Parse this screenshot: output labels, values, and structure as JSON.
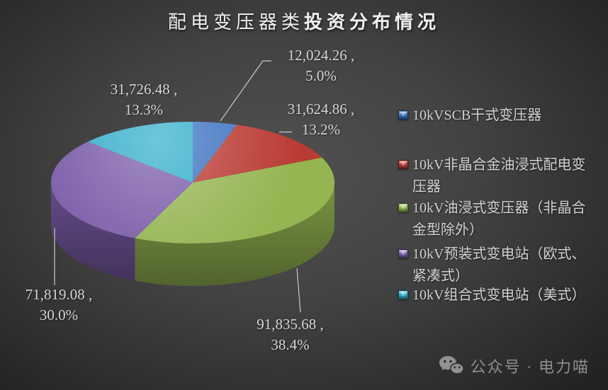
{
  "title": {
    "part1": "配电变压器类",
    "part2": "投资分布情况"
  },
  "chart_data": {
    "type": "pie",
    "is_3d": true,
    "start_angle_deg": 0,
    "direction": "clockwise",
    "legend_position": "right",
    "title": "配电变压器类投资分布情况",
    "slices": [
      {
        "name": "10kVSCB干式变压器",
        "value": 12024.26,
        "pct": 5.0,
        "value_label": "12,024.26 ,",
        "pct_label": "5.0%",
        "color": "#3d72c0"
      },
      {
        "name": "10kV非晶合金油浸式配电变压器",
        "value": 31624.86,
        "pct": 13.2,
        "value_label": "31,624.86 ,",
        "pct_label": "13.2%",
        "color": "#ba3b33"
      },
      {
        "name": "10kV油浸式变压器（非晶合金型除外）",
        "value": 91835.68,
        "pct": 38.4,
        "value_label": "91,835.68 ,",
        "pct_label": "38.4%",
        "color": "#94b551"
      },
      {
        "name": "10kV预装式变电站（欧式、紧凑式）",
        "value": 71819.08,
        "pct": 30.0,
        "value_label": "71,819.08 ,",
        "pct_label": "30.0%",
        "color": "#7b5ca8"
      },
      {
        "name": "10kV组合式变电站（美式）",
        "value": 31726.48,
        "pct": 13.3,
        "value_label": "31,726.48 ,",
        "pct_label": "13.3%",
        "color": "#32adc9"
      }
    ]
  },
  "watermark": {
    "icon": "wechat-icon",
    "text": "公众号 · 电力喵"
  },
  "colors": {
    "background_center": "#515151",
    "background_edge": "#222222",
    "title_text": "#f0f0f0",
    "label_text": "#d4d4d4",
    "legend_text": "#d0d0d0",
    "leader_line": "#c9c9c9",
    "watermark_text": "#8e8e8e"
  }
}
